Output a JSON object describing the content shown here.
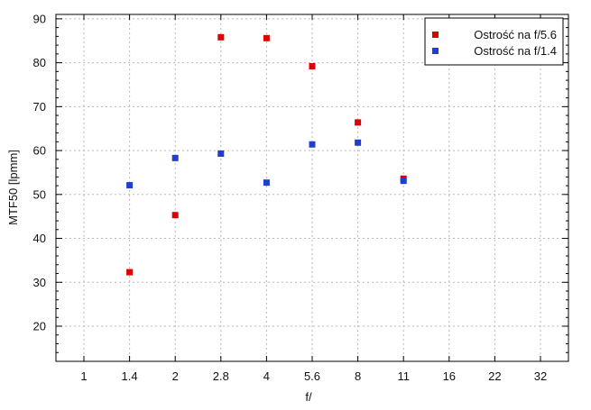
{
  "chart_data": {
    "type": "scatter",
    "title": "",
    "xlabel": "f/",
    "ylabel": "MTF50 [lpmm]",
    "x_categories": [
      "1",
      "1.4",
      "2",
      "2.8",
      "4",
      "5.6",
      "8",
      "11",
      "16",
      "22",
      "32"
    ],
    "ylim": [
      12,
      91
    ],
    "y_ticks": [
      20,
      30,
      40,
      50,
      60,
      70,
      80,
      90
    ],
    "grid": true,
    "legend_position": "top-right",
    "series": [
      {
        "name": "Ostrość na f/5.6",
        "color": "#e00000",
        "points": [
          {
            "x": "1.4",
            "y": 32.3
          },
          {
            "x": "2",
            "y": 45.3
          },
          {
            "x": "2.8",
            "y": 85.8
          },
          {
            "x": "4",
            "y": 85.6
          },
          {
            "x": "5.6",
            "y": 79.2
          },
          {
            "x": "8",
            "y": 66.4
          },
          {
            "x": "11",
            "y": 53.6
          }
        ]
      },
      {
        "name": "Ostrość na f/1.4",
        "color": "#1f3fd0",
        "points": [
          {
            "x": "1.4",
            "y": 52.1
          },
          {
            "x": "2",
            "y": 58.3
          },
          {
            "x": "2.8",
            "y": 59.3
          },
          {
            "x": "4",
            "y": 52.7
          },
          {
            "x": "5.6",
            "y": 61.4
          },
          {
            "x": "8",
            "y": 61.8
          },
          {
            "x": "11",
            "y": 53.1
          }
        ]
      }
    ]
  }
}
